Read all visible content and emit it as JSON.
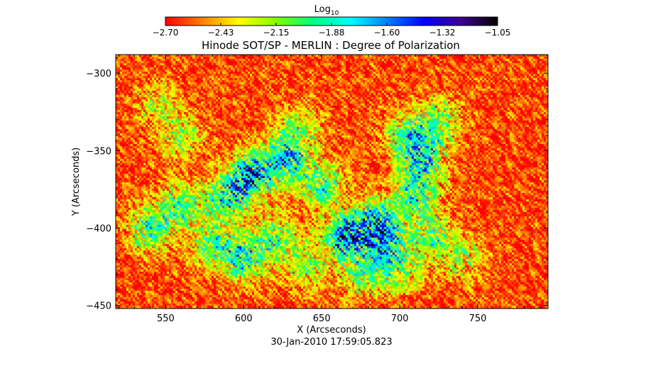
{
  "colorbar": {
    "label_main": "Log",
    "label_sub": "10",
    "ticks": [
      "-2.70",
      "-2.43",
      "-2.15",
      "-1.88",
      "-1.60",
      "-1.32",
      "-1.05"
    ],
    "range": [
      -2.7,
      -1.05
    ],
    "colors": [
      "#ff0000",
      "#ff8000",
      "#ffff00",
      "#80ff00",
      "#00ff80",
      "#00ffff",
      "#0080ff",
      "#0000ff",
      "#400090",
      "#000000"
    ]
  },
  "chart_data": {
    "type": "heatmap",
    "title": "Hinode SOT/SP - MERLIN : Degree of Polarization",
    "xlabel": "X (Arcseconds)",
    "ylabel": "Y (Arcseconds)",
    "xlim": [
      518,
      795
    ],
    "ylim": [
      -452,
      -288
    ],
    "xticks": [
      550,
      600,
      650,
      700,
      750
    ],
    "yticks": [
      -300,
      -350,
      -400,
      -450
    ],
    "xtick_labels": [
      "550",
      "600",
      "650",
      "700",
      "750"
    ],
    "ytick_labels": [
      "-300",
      "-350",
      "-400",
      "-450"
    ],
    "value_range": [
      -2.7,
      -1.05
    ],
    "value_label": "Log10",
    "background_level": -2.6,
    "features": [
      {
        "x": 605,
        "y": -365,
        "strength": 1.2
      },
      {
        "x": 628,
        "y": -355,
        "strength": 1.0
      },
      {
        "x": 590,
        "y": -380,
        "strength": 0.9
      },
      {
        "x": 560,
        "y": -385,
        "strength": 0.7
      },
      {
        "x": 540,
        "y": -400,
        "strength": 0.8
      },
      {
        "x": 580,
        "y": -410,
        "strength": 0.7
      },
      {
        "x": 600,
        "y": -420,
        "strength": 0.9
      },
      {
        "x": 620,
        "y": -405,
        "strength": 0.7
      },
      {
        "x": 665,
        "y": -405,
        "strength": 1.3
      },
      {
        "x": 685,
        "y": -395,
        "strength": 1.0
      },
      {
        "x": 650,
        "y": -372,
        "strength": 0.8
      },
      {
        "x": 690,
        "y": -410,
        "strength": 0.8
      },
      {
        "x": 710,
        "y": -378,
        "strength": 0.9
      },
      {
        "x": 715,
        "y": -355,
        "strength": 0.9
      },
      {
        "x": 705,
        "y": -340,
        "strength": 0.8
      },
      {
        "x": 725,
        "y": -330,
        "strength": 0.6
      },
      {
        "x": 720,
        "y": -405,
        "strength": 0.7
      },
      {
        "x": 700,
        "y": -428,
        "strength": 0.6
      },
      {
        "x": 740,
        "y": -420,
        "strength": 0.5
      },
      {
        "x": 640,
        "y": -425,
        "strength": 0.5
      },
      {
        "x": 675,
        "y": -430,
        "strength": 0.6
      },
      {
        "x": 635,
        "y": -335,
        "strength": 0.5
      },
      {
        "x": 545,
        "y": -320,
        "strength": 0.4
      },
      {
        "x": 560,
        "y": -340,
        "strength": 0.5
      }
    ]
  },
  "timestamp": "30-Jan-2010 17:59:05.823"
}
